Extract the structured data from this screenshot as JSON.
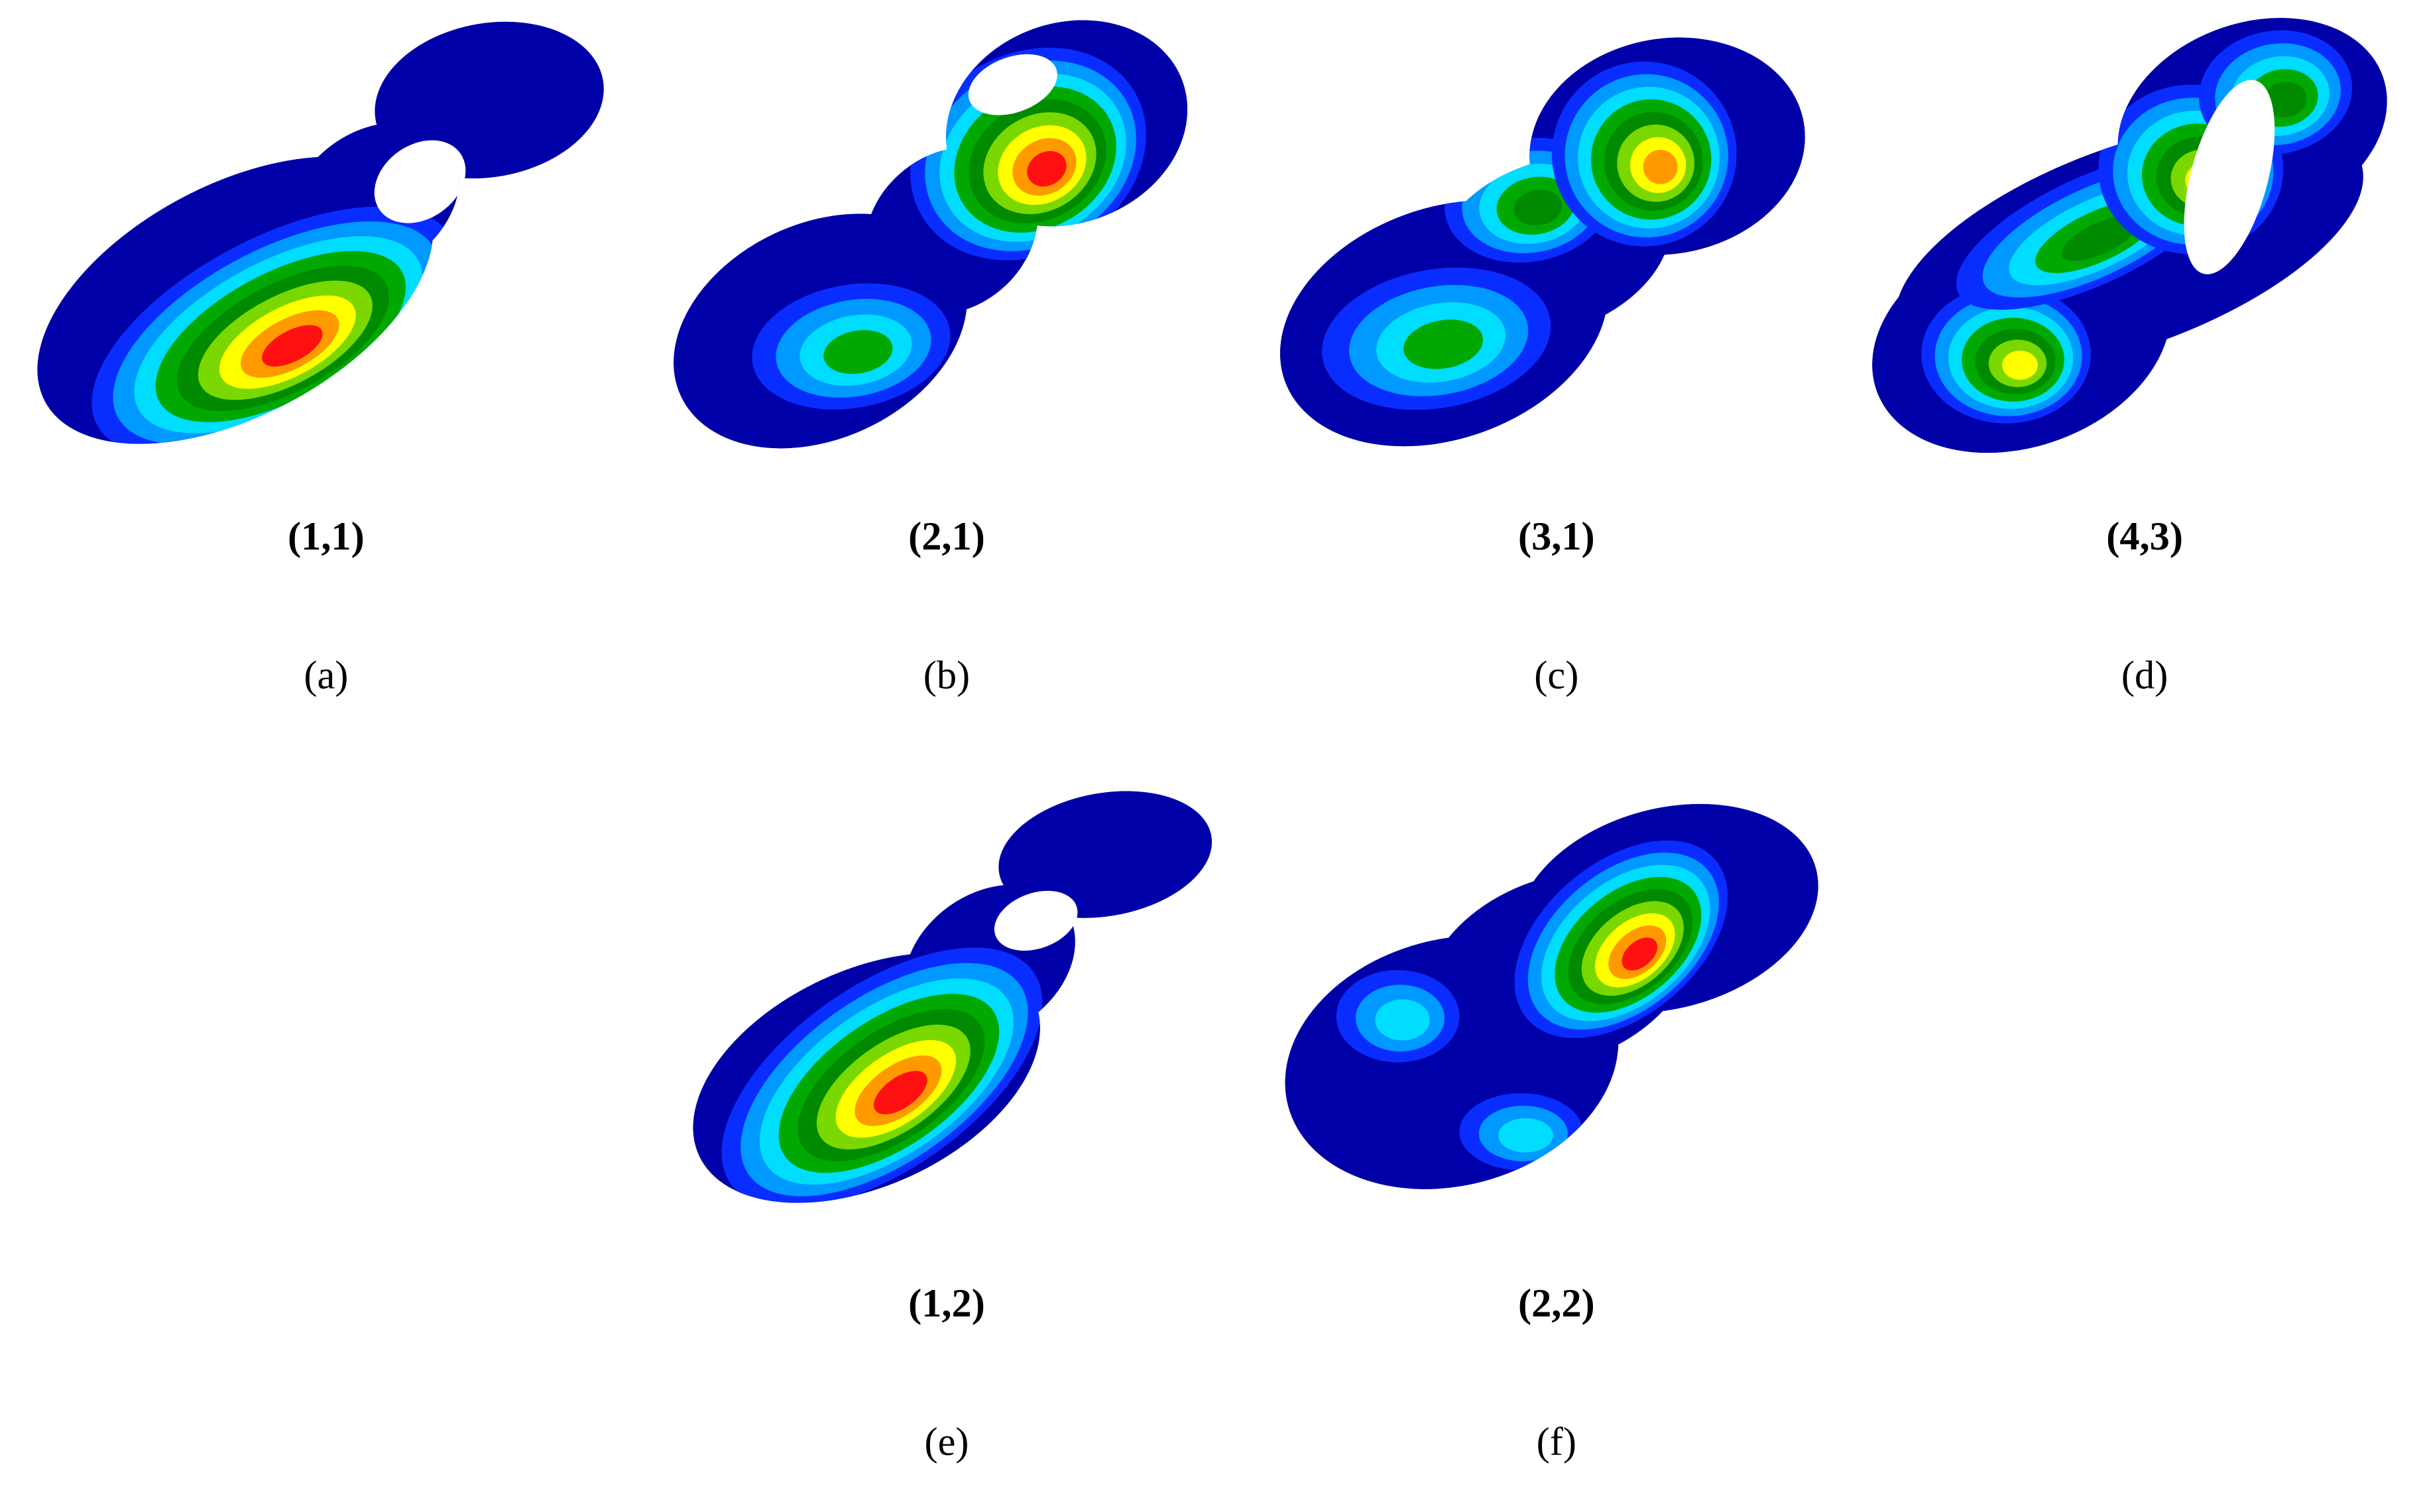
{
  "panels": [
    {
      "mode": "(1,1)",
      "label": "(a)"
    },
    {
      "mode": "(2,1)",
      "label": "(b)"
    },
    {
      "mode": "(3,1)",
      "label": "(c)"
    },
    {
      "mode": "(4,3)",
      "label": "(d)"
    },
    {
      "mode": "(1,2)",
      "label": "(e)"
    },
    {
      "mode": "(2,2)",
      "label": "(f)"
    }
  ]
}
